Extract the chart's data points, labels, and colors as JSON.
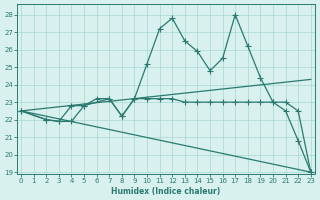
{
  "xlabel": "Humidex (Indice chaleur)",
  "x": [
    0,
    1,
    2,
    3,
    4,
    5,
    6,
    7,
    8,
    9,
    10,
    11,
    12,
    13,
    14,
    15,
    16,
    17,
    18,
    19,
    20,
    21,
    22,
    23
  ],
  "line1": [
    22.5,
    22.0,
    21.9,
    21.9,
    22.8,
    23.2,
    23.2,
    22.2,
    23.2,
    25.2,
    27.2,
    27.8,
    26.5,
    25.9,
    24.8,
    25.5,
    28.0,
    26.2,
    24.4,
    23.0,
    22.5,
    20.8,
    19.0
  ],
  "line1_x": [
    0,
    2,
    3,
    4,
    5,
    6,
    7,
    8,
    9,
    10,
    11,
    12,
    13,
    14,
    15,
    16,
    17,
    18,
    19,
    20,
    21,
    22,
    23
  ],
  "line2": [
    22.5,
    22.0,
    21.9,
    22.8,
    22.8,
    23.2,
    22.2,
    23.2,
    23.2,
    23.2,
    23.2,
    23.0,
    23.0,
    23.0,
    23.0,
    23.0,
    23.0,
    23.0,
    23.0,
    23.0,
    22.5,
    19.0
  ],
  "line2_x": [
    0,
    2,
    3,
    4,
    5,
    7,
    8,
    9,
    10,
    11,
    12,
    13,
    14,
    15,
    16,
    17,
    18,
    19,
    20,
    21,
    22,
    23
  ],
  "line3_x": [
    0,
    23
  ],
  "line3_y": [
    22.5,
    24.3
  ],
  "line4_x": [
    0,
    23
  ],
  "line4_y": [
    22.5,
    19.0
  ],
  "color": "#2a7a70",
  "bg_color": "#d8f0ee",
  "grid_color": "#a8d8d0",
  "ylim": [
    18.9,
    28.6
  ],
  "xlim": [
    -0.3,
    23.3
  ],
  "yticks": [
    19,
    20,
    21,
    22,
    23,
    24,
    25,
    26,
    27,
    28
  ],
  "xticks": [
    0,
    1,
    2,
    3,
    4,
    5,
    6,
    7,
    8,
    9,
    10,
    11,
    12,
    13,
    14,
    15,
    16,
    17,
    18,
    19,
    20,
    21,
    22,
    23
  ]
}
